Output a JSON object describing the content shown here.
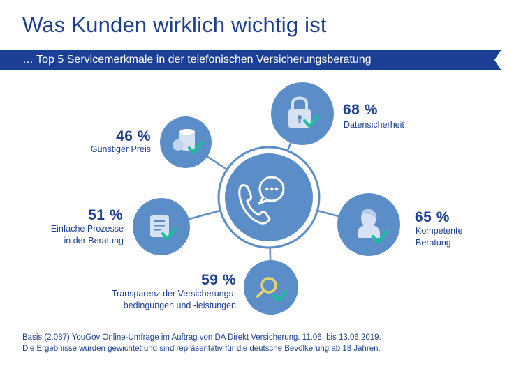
{
  "title": "Was Kunden wirklich wichtig ist",
  "subtitle": "… Top 5 Servicemerkmale in der telefonischen Versicherungsberatung",
  "colors": {
    "brand_blue": "#1b3f95",
    "circle_fill": "#5b8ec9",
    "ring": "#5b8ec9",
    "check": "#1abfa0",
    "icon_light": "#d6e2f3"
  },
  "center": {
    "icon": "phone-chat-icon"
  },
  "items": [
    {
      "percent": "68 %",
      "label_lines": [
        "Datensicherheit"
      ],
      "icon": "padlock-icon"
    },
    {
      "percent": "46 %",
      "label_lines": [
        "Günstiger Preis"
      ],
      "icon": "coins-icon"
    },
    {
      "percent": "65 %",
      "label_lines": [
        "Kompetente",
        "Beratung"
      ],
      "icon": "person-icon"
    },
    {
      "percent": "51 %",
      "label_lines": [
        "Einfache Prozesse",
        "in der Beratung"
      ],
      "icon": "document-icon"
    },
    {
      "percent": "59 %",
      "label_lines": [
        "Transparenz der Versicherungs-",
        "bedingungen und -leistungen"
      ],
      "icon": "magnifier-icon"
    }
  ],
  "footer_lines": [
    "Basis (2.037) YouGov Online-Umfrage im Auftrag von DA Direkt Versicherung. 11.06. bis 13.06.2019.",
    "Die Ergebnisse wurden gewichtet und sind repräsentativ für die deutsche Bevölkerung ab 18 Jahren."
  ]
}
